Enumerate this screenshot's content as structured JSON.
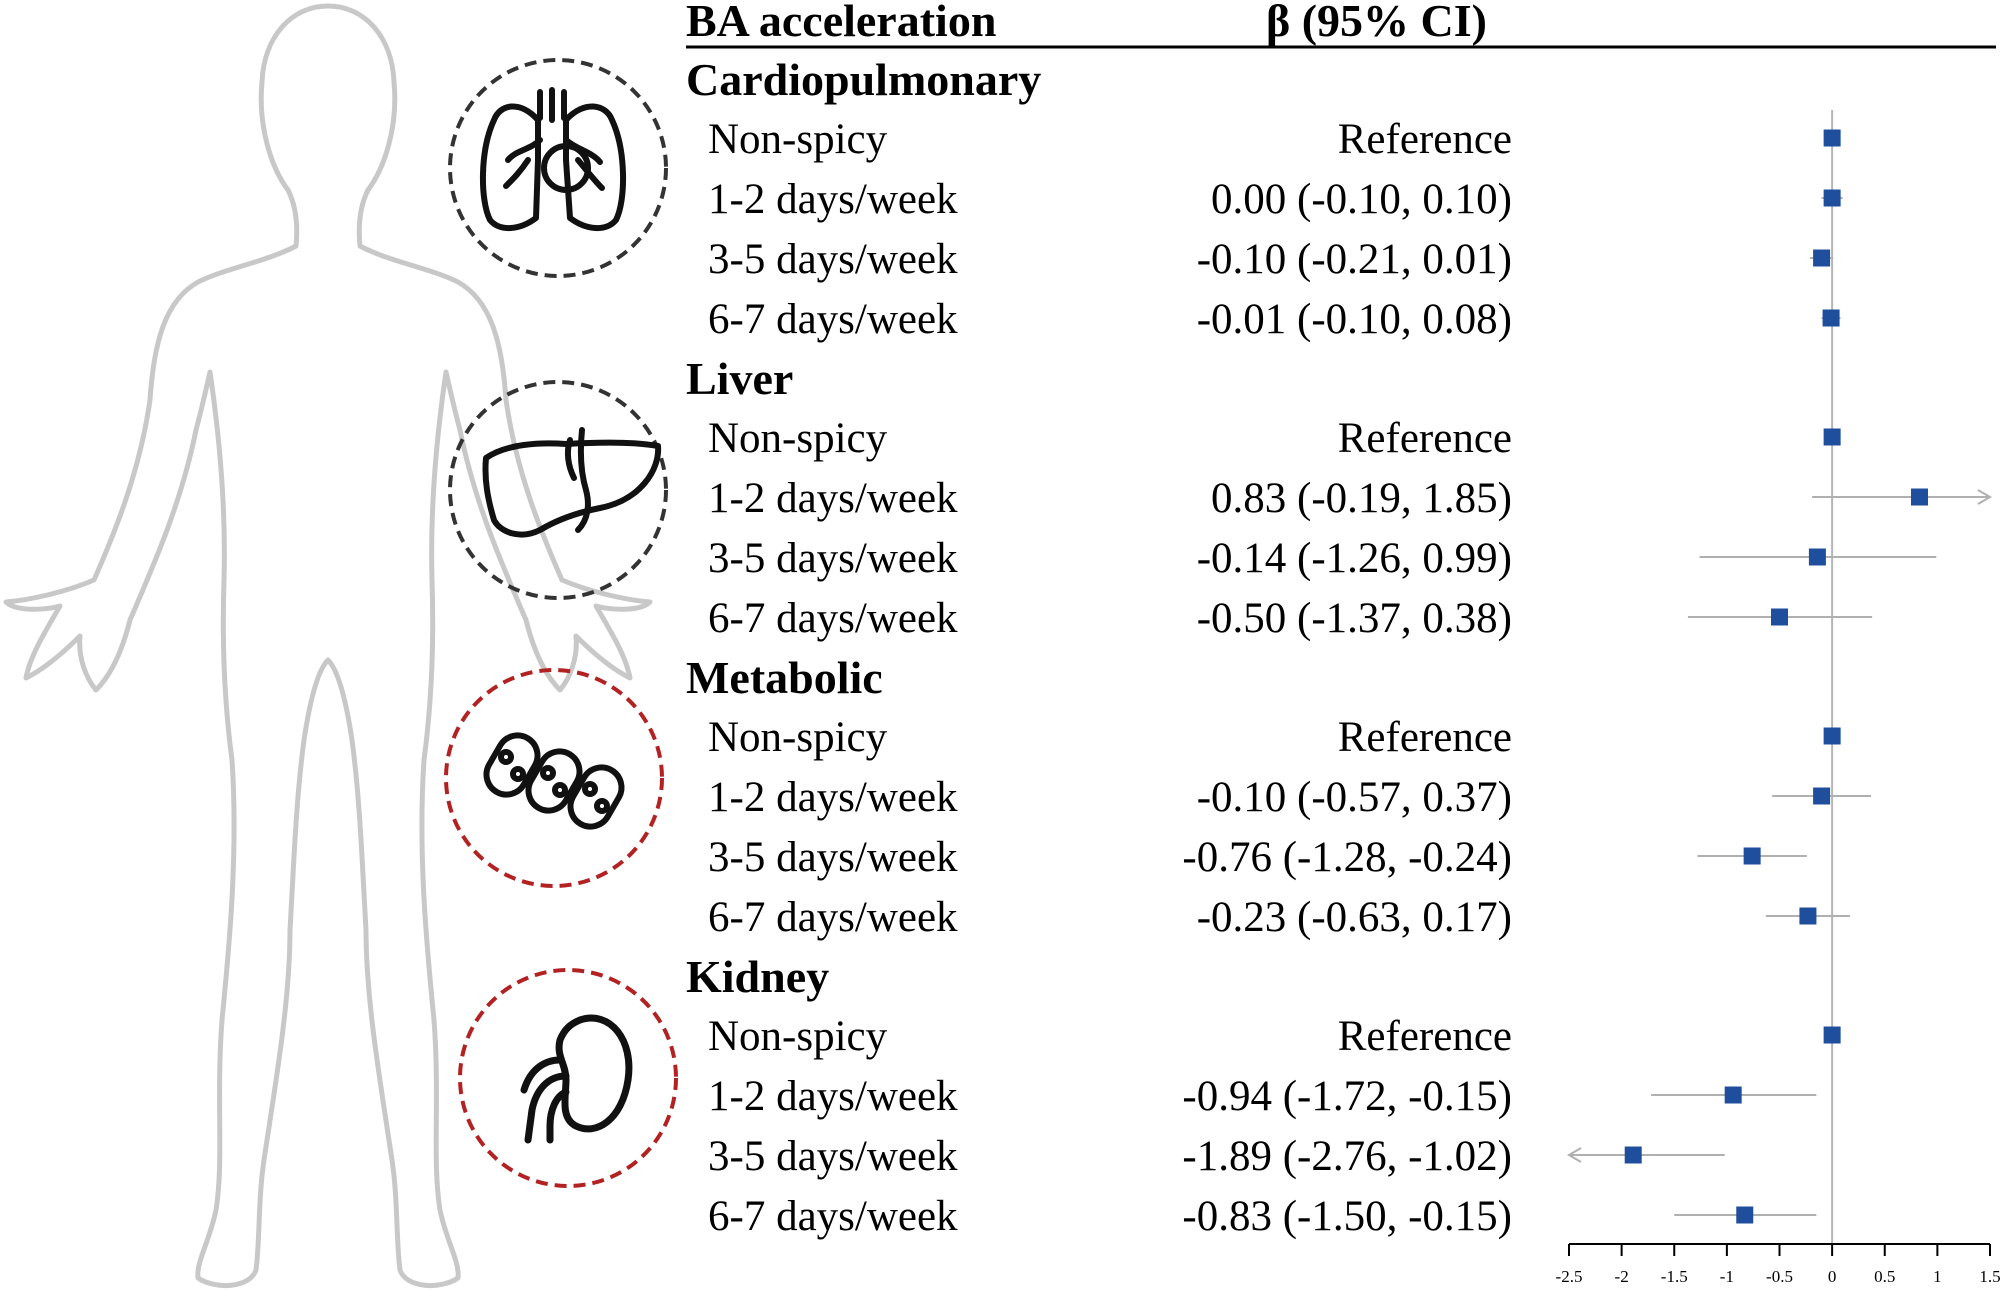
{
  "header": {
    "col1": "BA acceleration",
    "col2": "β (95% CI)"
  },
  "chart_data": {
    "type": "forest",
    "xlim": [
      -2.5,
      1.5
    ],
    "xticks": [
      "-2.5",
      "-2",
      "-1.5",
      "-1",
      "-0.5",
      "0",
      "0.5",
      "1",
      "1.5"
    ],
    "reference_line": 0,
    "groups": [
      {
        "name": "Cardiopulmonary",
        "icon": "lungs-heart-icon",
        "icon_color": "#333333",
        "rows": [
          {
            "label": "Non-spicy",
            "text": "Reference",
            "beta": 0,
            "lo": null,
            "hi": null
          },
          {
            "label": "1-2 days/week",
            "text": "0.00 (-0.10, 0.10)",
            "beta": 0.0,
            "lo": -0.1,
            "hi": 0.1
          },
          {
            "label": "3-5 days/week",
            "text": "-0.10 (-0.21, 0.01)",
            "beta": -0.1,
            "lo": -0.21,
            "hi": 0.01
          },
          {
            "label": "6-7 days/week",
            "text": "-0.01 (-0.10, 0.08)",
            "beta": -0.01,
            "lo": -0.1,
            "hi": 0.08
          }
        ]
      },
      {
        "name": "Liver",
        "icon": "liver-icon",
        "icon_color": "#333333",
        "rows": [
          {
            "label": "Non-spicy",
            "text": "Reference",
            "beta": 0,
            "lo": null,
            "hi": null
          },
          {
            "label": "1-2 days/week",
            "text": "0.83 (-0.19, 1.85)",
            "beta": 0.83,
            "lo": -0.19,
            "hi": 1.85
          },
          {
            "label": "3-5 days/week",
            "text": "-0.14 (-1.26, 0.99)",
            "beta": -0.14,
            "lo": -1.26,
            "hi": 0.99
          },
          {
            "label": "6-7 days/week",
            "text": "-0.50 (-1.37, 0.38)",
            "beta": -0.5,
            "lo": -1.37,
            "hi": 0.38
          }
        ]
      },
      {
        "name": "Metabolic",
        "icon": "cells-icon",
        "icon_color": "#b22222",
        "rows": [
          {
            "label": "Non-spicy",
            "text": "Reference",
            "beta": 0,
            "lo": null,
            "hi": null
          },
          {
            "label": "1-2 days/week",
            "text": "-0.10 (-0.57, 0.37)",
            "beta": -0.1,
            "lo": -0.57,
            "hi": 0.37
          },
          {
            "label": "3-5 days/week",
            "text": "-0.76 (-1.28, -0.24)",
            "beta": -0.76,
            "lo": -1.28,
            "hi": -0.24
          },
          {
            "label": "6-7 days/week",
            "text": "-0.23 (-0.63, 0.17)",
            "beta": -0.23,
            "lo": -0.63,
            "hi": 0.17
          }
        ]
      },
      {
        "name": "Kidney",
        "icon": "kidney-icon",
        "icon_color": "#b22222",
        "rows": [
          {
            "label": "Non-spicy",
            "text": "Reference",
            "beta": 0,
            "lo": null,
            "hi": null
          },
          {
            "label": "1-2 days/week",
            "text": "-0.94 (-1.72, -0.15)",
            "beta": -0.94,
            "lo": -1.72,
            "hi": -0.15
          },
          {
            "label": "3-5 days/week",
            "text": "-1.89 (-2.76, -1.02)",
            "beta": -1.89,
            "lo": -2.76,
            "hi": -1.02
          },
          {
            "label": "6-7 days/week",
            "text": "-0.83 (-1.50, -0.15)",
            "beta": -0.83,
            "lo": -1.5,
            "hi": -0.15
          }
        ]
      }
    ]
  },
  "colors": {
    "marker": "#1f4e9c",
    "ci_line": "#b0b0b0",
    "silhouette": "#c8c8c8",
    "dark_circle": "#333333",
    "red_circle": "#b22222"
  }
}
